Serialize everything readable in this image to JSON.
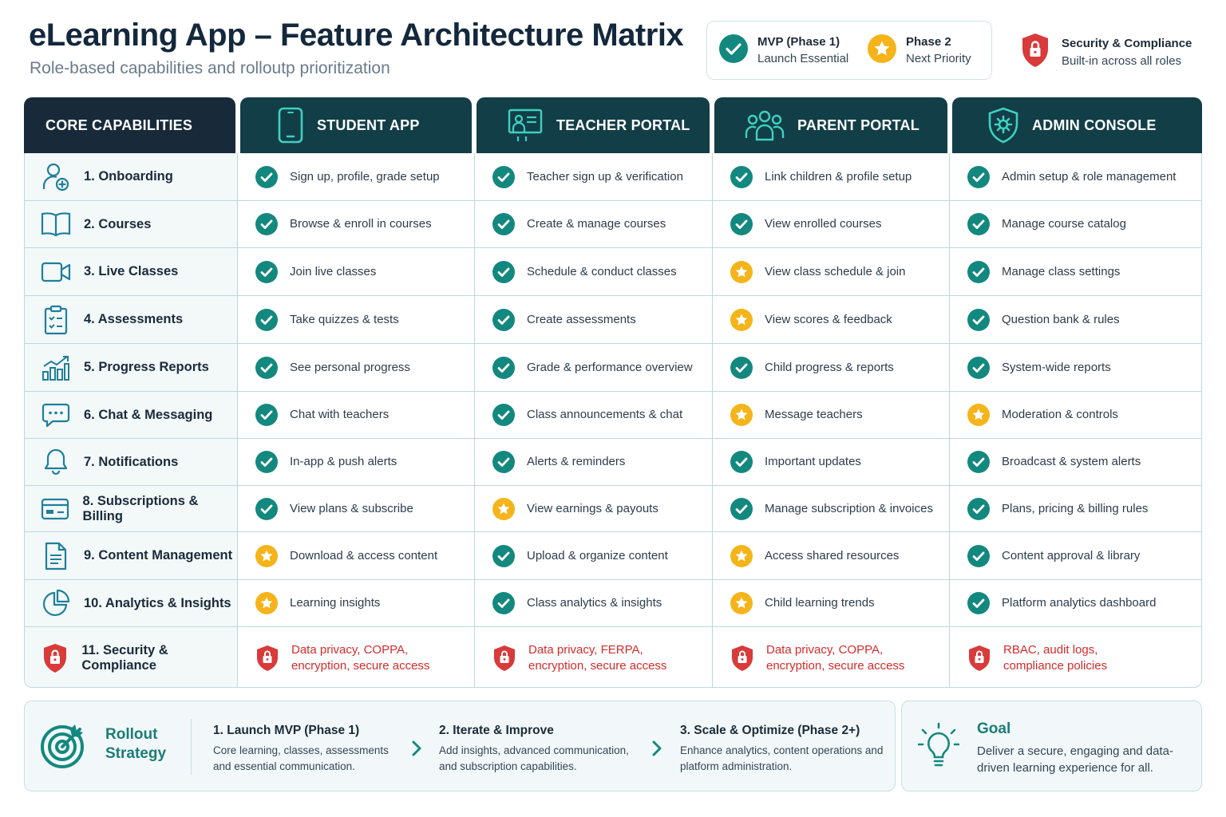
{
  "header": {
    "title": "eLearning App – Feature Architecture Matrix",
    "subtitle": "Role-based capabilities and rolloutp prioritization"
  },
  "legend": {
    "mvp_title": "MVP (Phase 1)",
    "mvp_desc": "Launch Essential",
    "phase2_title": "Phase 2",
    "phase2_desc": "Next Priority",
    "security_title": "Security & Compliance",
    "security_desc": "Built-in across all roles"
  },
  "colors": {
    "mvp": "#13887f",
    "phase2": "#f5b41a",
    "security": "#d93a3a",
    "header_dark": "#123e47",
    "header_core": "#182a3a"
  },
  "columns": [
    {
      "label": "CORE CAPABILITIES",
      "icon": ""
    },
    {
      "label": "STUDENT APP",
      "icon": "phone-icon"
    },
    {
      "label": "TEACHER PORTAL",
      "icon": "whiteboard-teacher-icon"
    },
    {
      "label": "PARENT PORTAL",
      "icon": "family-icon"
    },
    {
      "label": "ADMIN CONSOLE",
      "icon": "shield-gear-icon"
    }
  ],
  "rows": [
    {
      "capability": "1. Onboarding",
      "icon": "user-add-icon",
      "cells": [
        {
          "text": "Sign up, profile, grade setup",
          "status": "mvp"
        },
        {
          "text": "Teacher sign up & verification",
          "status": "mvp"
        },
        {
          "text": "Link children & profile setup",
          "status": "mvp"
        },
        {
          "text": "Admin setup & role management",
          "status": "mvp"
        }
      ]
    },
    {
      "capability": "2. Courses",
      "icon": "book-icon",
      "cells": [
        {
          "text": "Browse & enroll in courses",
          "status": "mvp"
        },
        {
          "text": "Create & manage courses",
          "status": "mvp"
        },
        {
          "text": "View enrolled courses",
          "status": "mvp"
        },
        {
          "text": "Manage course catalog",
          "status": "mvp"
        }
      ]
    },
    {
      "capability": "3. Live Classes",
      "icon": "video-camera-icon",
      "cells": [
        {
          "text": "Join live classes",
          "status": "mvp"
        },
        {
          "text": "Schedule & conduct classes",
          "status": "mvp"
        },
        {
          "text": "View class schedule & join",
          "status": "phase2"
        },
        {
          "text": "Manage class settings",
          "status": "mvp"
        }
      ]
    },
    {
      "capability": "4. Assessments",
      "icon": "clipboard-check-icon",
      "cells": [
        {
          "text": "Take quizzes & tests",
          "status": "mvp"
        },
        {
          "text": "Create assessments",
          "status": "mvp"
        },
        {
          "text": "View scores & feedback",
          "status": "phase2"
        },
        {
          "text": "Question bank & rules",
          "status": "mvp"
        }
      ]
    },
    {
      "capability": "5. Progress Reports",
      "icon": "bar-chart-trend-icon",
      "cells": [
        {
          "text": "See personal progress",
          "status": "mvp"
        },
        {
          "text": "Grade & performance overview",
          "status": "mvp"
        },
        {
          "text": "Child progress & reports",
          "status": "mvp"
        },
        {
          "text": "System-wide reports",
          "status": "mvp"
        }
      ]
    },
    {
      "capability": "6. Chat & Messaging",
      "icon": "chat-bubble-icon",
      "cells": [
        {
          "text": "Chat with teachers",
          "status": "mvp"
        },
        {
          "text": "Class announcements & chat",
          "status": "mvp"
        },
        {
          "text": "Message teachers",
          "status": "phase2"
        },
        {
          "text": "Moderation & controls",
          "status": "phase2"
        }
      ]
    },
    {
      "capability": "7. Notifications",
      "icon": "bell-icon",
      "cells": [
        {
          "text": "In-app & push alerts",
          "status": "mvp"
        },
        {
          "text": "Alerts & reminders",
          "status": "mvp"
        },
        {
          "text": "Important updates",
          "status": "mvp"
        },
        {
          "text": "Broadcast & system alerts",
          "status": "mvp"
        }
      ]
    },
    {
      "capability": "8. Subscriptions & Billing",
      "icon": "credit-card-icon",
      "cells": [
        {
          "text": "View plans & subscribe",
          "status": "mvp"
        },
        {
          "text": "View earnings & payouts",
          "status": "phase2"
        },
        {
          "text": "Manage subscription & invoices",
          "status": "mvp"
        },
        {
          "text": "Plans, pricing & billing rules",
          "status": "mvp"
        }
      ]
    },
    {
      "capability": "9. Content Management",
      "icon": "document-icon",
      "cells": [
        {
          "text": "Download & access content",
          "status": "phase2"
        },
        {
          "text": "Upload & organize content",
          "status": "mvp"
        },
        {
          "text": "Access shared resources",
          "status": "phase2"
        },
        {
          "text": "Content approval & library",
          "status": "mvp"
        }
      ]
    },
    {
      "capability": "10. Analytics & Insights",
      "icon": "pie-chart-icon",
      "cells": [
        {
          "text": "Learning insights",
          "status": "phase2"
        },
        {
          "text": "Class analytics & insights",
          "status": "mvp"
        },
        {
          "text": "Child learning trends",
          "status": "phase2"
        },
        {
          "text": "Platform analytics dashboard",
          "status": "mvp"
        }
      ]
    },
    {
      "capability": "11. Security & Compliance",
      "icon": "shield-lock-icon",
      "cells": [
        {
          "text": "Data privacy, COPPA,\nencryption, secure access",
          "status": "security"
        },
        {
          "text": "Data privacy, FERPA,\nencryption, secure access",
          "status": "security"
        },
        {
          "text": "Data privacy, COPPA,\nencryption, secure access",
          "status": "security"
        },
        {
          "text": "RBAC, audit logs,\ncompliance policies",
          "status": "security"
        }
      ]
    }
  ],
  "rollout": {
    "title": "Rollout Strategy",
    "steps": [
      {
        "title": "1. Launch MVP (Phase 1)",
        "desc": "Core learning, classes, assessments and essential communication."
      },
      {
        "title": "2. Iterate & Improve",
        "desc": "Add insights, advanced communication, and subscription capabilities."
      },
      {
        "title": "3. Scale & Optimize (Phase 2+)",
        "desc": "Enhance analytics, content operations and platform administration."
      }
    ]
  },
  "goal": {
    "title": "Goal",
    "desc": "Deliver a secure, engaging and data-driven learning experience for all."
  }
}
